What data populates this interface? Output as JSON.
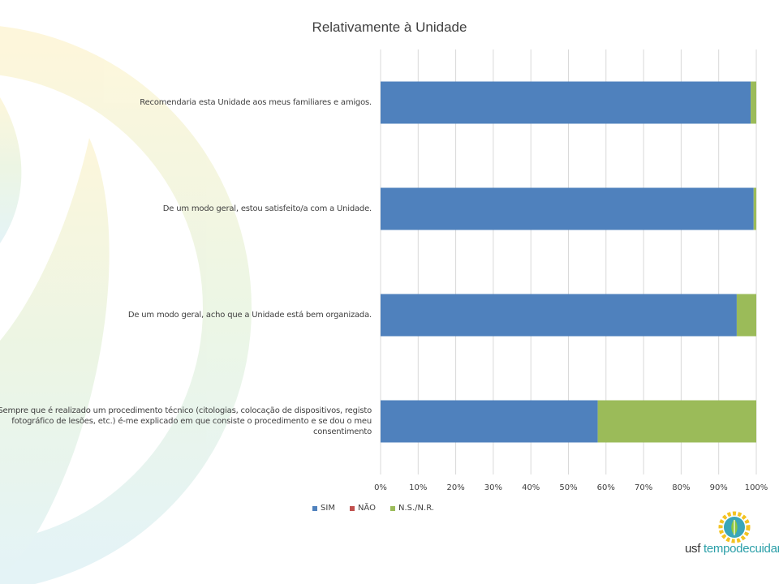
{
  "chart_data": {
    "type": "bar",
    "orientation": "horizontal",
    "stacked": "percent",
    "title": "Relativamente à Unidade",
    "categories": [
      "Recomendaria esta Unidade aos meus familiares e amigos.",
      "De um modo geral, estou satisfeito/a com a Unidade.",
      "De um modo geral, acho que a Unidade está bem organizada.",
      "Sempre que é realizado um procedimento técnico (citologias, colocação de dispositivos, registo fotográfico de lesões, etc.) é-me explicado em que consiste o procedimento e se dou o meu consentimento"
    ],
    "series": [
      {
        "name": "SIM",
        "color": "#4f81bd",
        "values": [
          98.5,
          99.3,
          94.8,
          57.8
        ]
      },
      {
        "name": "NÃO",
        "color": "#c0504d",
        "values": [
          0,
          0,
          0,
          0
        ]
      },
      {
        "name": "N.S./N.R.",
        "color": "#9bbb59",
        "values": [
          1.5,
          0.7,
          5.2,
          42.2
        ]
      }
    ],
    "xlim": [
      0,
      100
    ],
    "xticks": [
      "0%",
      "10%",
      "20%",
      "30%",
      "40%",
      "50%",
      "60%",
      "70%",
      "80%",
      "90%",
      "100%"
    ],
    "grid": true,
    "legend_position": "bottom"
  },
  "logo": {
    "text_prefix": "usf ",
    "text_accent": "tempodecuidar"
  }
}
